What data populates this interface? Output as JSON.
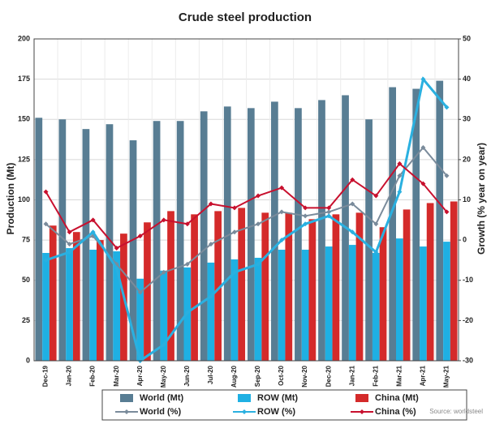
{
  "chart_data": {
    "type": "combo",
    "title": "Crude steel production",
    "y_label": "Production (Mt)",
    "y2_label": "Growth (% year on year)",
    "source": "Source: worldsteel",
    "categories": [
      "Dec-19",
      "Jan-20",
      "Feb-20",
      "Mar-20",
      "Apr-20",
      "May-20",
      "Jun-20",
      "Jul-20",
      "Aug-20",
      "Sep-20",
      "Oct-20",
      "Nov-20",
      "Dec-20",
      "Jan-21",
      "Feb-21",
      "Mar-21",
      "Apr-21",
      "May-21"
    ],
    "ylim": [
      0,
      200
    ],
    "yticks": [
      0,
      25,
      50,
      75,
      100,
      125,
      150,
      175,
      200
    ],
    "y2lim": [
      -30,
      50
    ],
    "y2ticks": [
      -30,
      -20,
      -10,
      0,
      10,
      20,
      30,
      40,
      50
    ],
    "grid": true,
    "series": [
      {
        "name": "World (Mt)",
        "type": "bar",
        "color": "#587d93",
        "values": [
          151,
          150,
          144,
          147,
          137,
          149,
          149,
          155,
          158,
          157,
          161,
          157,
          162,
          165,
          150,
          170,
          169,
          174
        ]
      },
      {
        "name": "ROW (Mt)",
        "type": "bar",
        "color": "#1fb0e3",
        "values": [
          67,
          70,
          69,
          68,
          51,
          56,
          58,
          61,
          63,
          64,
          69,
          69,
          71,
          72,
          67,
          76,
          71,
          74
        ]
      },
      {
        "name": "China (Mt)",
        "type": "bar",
        "color": "#d42a2a",
        "values": [
          84,
          80,
          75,
          79,
          86,
          93,
          91,
          93,
          95,
          92,
          92,
          88,
          91,
          92,
          83,
          94,
          98,
          99
        ]
      },
      {
        "name": "World (%)",
        "type": "line",
        "axis": "y2",
        "color": "#7a8b9b",
        "values": [
          4,
          -1,
          1,
          -6,
          -13,
          -8,
          -6,
          -1,
          2,
          4,
          7,
          6,
          7,
          9,
          4,
          16,
          23,
          16
        ]
      },
      {
        "name": "ROW (%)",
        "type": "line",
        "axis": "y2",
        "color": "#2ab0e0",
        "values": [
          -5,
          -3,
          2,
          -7,
          -30,
          -26,
          -18,
          -14,
          -8,
          -6,
          0,
          4,
          6,
          2,
          -3,
          12,
          40,
          33
        ]
      },
      {
        "name": "China (%)",
        "type": "line",
        "axis": "y2",
        "color": "#c8102e",
        "values": [
          12,
          2,
          5,
          -2,
          1,
          5,
          4,
          9,
          8,
          11,
          13,
          8,
          8,
          15,
          11,
          19,
          14,
          7
        ]
      }
    ]
  }
}
